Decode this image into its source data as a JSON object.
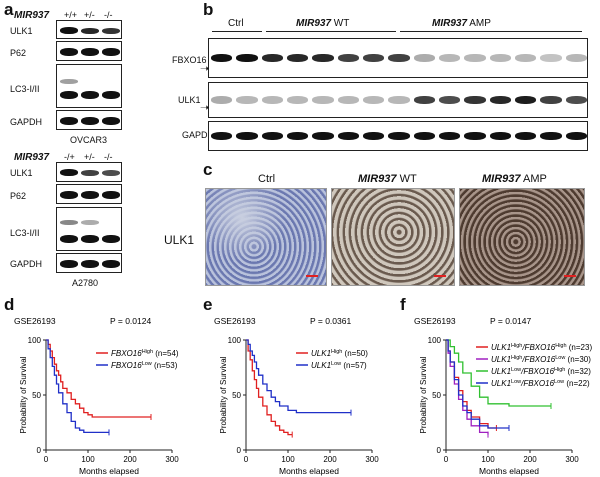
{
  "panels": {
    "a": "a",
    "b": "b",
    "c": "c",
    "d": "d",
    "e": "e",
    "f": "f"
  },
  "panel_a": {
    "top": {
      "gene": "MIR937",
      "genotypes": [
        "+/+",
        "+/-",
        "-/-"
      ],
      "rows": [
        "ULK1",
        "P62",
        "LC3-I/II",
        "GAPDH"
      ],
      "cell_line": "OVCAR3"
    },
    "bottom": {
      "gene": "MIR937",
      "genotypes": [
        "-/+",
        "+/-",
        "-/-"
      ],
      "rows": [
        "ULK1",
        "P62",
        "LC3-I/II",
        "GAPDH"
      ],
      "cell_line": "A2780"
    }
  },
  "panel_b": {
    "groups": [
      {
        "name": "Ctrl",
        "gene": "",
        "suffix": ""
      },
      {
        "name": "",
        "gene": "MIR937",
        "suffix": " WT"
      },
      {
        "name": "",
        "gene": "MIR937",
        "suffix": " AMP"
      }
    ],
    "rows": [
      "FBXO16",
      "ULK1",
      "GAPDH"
    ]
  },
  "panel_c": {
    "columns": [
      {
        "gene": "",
        "suffix": "Ctrl"
      },
      {
        "gene": "MIR937",
        "suffix": " WT"
      },
      {
        "gene": "MIR937",
        "suffix": " AMP"
      }
    ],
    "row_label": "ULK1"
  },
  "chart_data": [
    {
      "type": "line",
      "dataset": "GSE26193",
      "pvalue": "P = 0.0124",
      "xlabel": "Months elapsed",
      "ylabel": "Probability of Survival",
      "xlim": [
        0,
        300
      ],
      "ylim": [
        0,
        100
      ],
      "xticks": [
        "0",
        "100",
        "200",
        "300"
      ],
      "yticks": [
        "0",
        "50",
        "100"
      ],
      "series": [
        {
          "name": "FBXO16",
          "sup": "High",
          "n": "(n=54)",
          "color": "#e02020",
          "x": [
            0,
            5,
            10,
            15,
            20,
            25,
            30,
            35,
            40,
            50,
            60,
            70,
            80,
            90,
            100,
            110,
            120,
            250
          ],
          "y": [
            100,
            96,
            90,
            84,
            78,
            72,
            68,
            62,
            56,
            52,
            46,
            42,
            38,
            34,
            32,
            30,
            30,
            30
          ]
        },
        {
          "name": "FBXO16",
          "sup": "Low",
          "n": "(n=53)",
          "color": "#2030c8",
          "x": [
            0,
            5,
            10,
            15,
            20,
            25,
            30,
            40,
            50,
            60,
            70,
            80,
            90,
            100,
            150
          ],
          "y": [
            100,
            92,
            84,
            76,
            68,
            60,
            52,
            42,
            34,
            26,
            20,
            18,
            16,
            16,
            16
          ]
        }
      ]
    },
    {
      "type": "line",
      "dataset": "GSE26193",
      "pvalue": "P = 0.0361",
      "xlabel": "Months elapsed",
      "ylabel": "Probability of Survival",
      "xlim": [
        0,
        300
      ],
      "ylim": [
        0,
        100
      ],
      "xticks": [
        "0",
        "100",
        "200",
        "300"
      ],
      "yticks": [
        "0",
        "50",
        "100"
      ],
      "series": [
        {
          "name": "ULK1",
          "sup": "High",
          "n": "(n=50)",
          "color": "#e02020",
          "x": [
            0,
            5,
            10,
            15,
            20,
            25,
            30,
            40,
            50,
            60,
            70,
            80,
            90,
            100,
            110
          ],
          "y": [
            100,
            90,
            82,
            72,
            64,
            56,
            48,
            40,
            32,
            26,
            22,
            18,
            16,
            14,
            14
          ]
        },
        {
          "name": "ULK1",
          "sup": "Low",
          "n": "(n=57)",
          "color": "#2030c8",
          "x": [
            0,
            5,
            10,
            15,
            20,
            25,
            30,
            40,
            50,
            60,
            70,
            80,
            100,
            120,
            250
          ],
          "y": [
            100,
            96,
            90,
            86,
            80,
            74,
            68,
            60,
            54,
            48,
            44,
            40,
            36,
            34,
            34
          ]
        }
      ]
    },
    {
      "type": "line",
      "dataset": "GSE26193",
      "pvalue": "P = 0.0147",
      "xlabel": "Months elapsed",
      "ylabel": "Probability of Survival",
      "xlim": [
        0,
        300
      ],
      "ylim": [
        0,
        100
      ],
      "xticks": [
        "0",
        "100",
        "200",
        "300"
      ],
      "yticks": [
        "0",
        "50",
        "100"
      ],
      "series": [
        {
          "name": "ULK1",
          "sup": "High",
          "name2": "FBXO16",
          "sup2": "High",
          "n": "(n=23)",
          "color": "#e02020",
          "x": [
            0,
            5,
            10,
            20,
            30,
            40,
            50,
            60,
            80,
            100,
            120
          ],
          "y": [
            100,
            90,
            80,
            66,
            54,
            44,
            36,
            30,
            24,
            20,
            20
          ]
        },
        {
          "name": "ULK1",
          "sup": "High",
          "name2": "FBXO16",
          "sup2": "Low",
          "n": "(n=30)",
          "color": "#a020c0",
          "x": [
            0,
            5,
            10,
            20,
            30,
            40,
            50,
            60,
            80,
            100
          ],
          "y": [
            100,
            88,
            76,
            60,
            46,
            36,
            28,
            22,
            16,
            14
          ]
        },
        {
          "name": "ULK1",
          "sup": "Low",
          "name2": "FBXO16",
          "sup2": "High",
          "n": "(n=32)",
          "color": "#30c030",
          "x": [
            0,
            10,
            20,
            30,
            40,
            60,
            80,
            100,
            150,
            250
          ],
          "y": [
            100,
            94,
            88,
            80,
            70,
            58,
            48,
            42,
            40,
            40
          ]
        },
        {
          "name": "ULK1",
          "sup": "Low",
          "name2": "FBXO16",
          "sup2": "Low",
          "n": "(n=22)",
          "color": "#2030c8",
          "x": [
            0,
            5,
            10,
            20,
            30,
            40,
            50,
            60,
            80,
            100,
            150
          ],
          "y": [
            100,
            90,
            80,
            64,
            50,
            40,
            34,
            28,
            22,
            20,
            20
          ]
        }
      ]
    }
  ]
}
